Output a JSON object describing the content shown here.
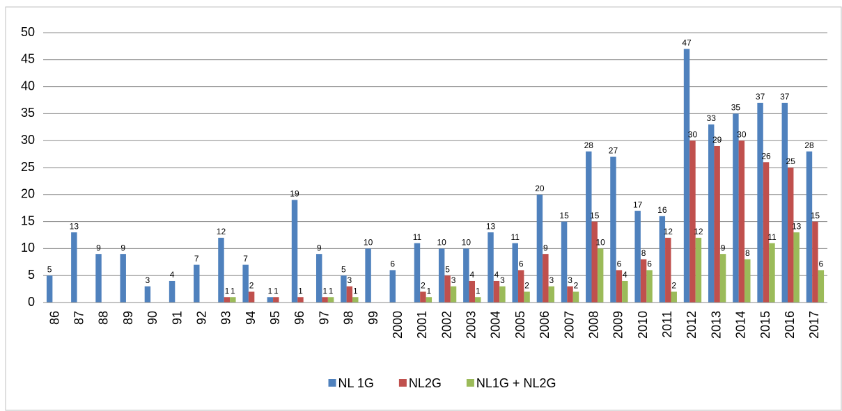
{
  "chart_data": {
    "type": "bar",
    "categories": [
      "86",
      "87",
      "88",
      "89",
      "90",
      "91",
      "92",
      "93",
      "94",
      "95",
      "96",
      "97",
      "98",
      "99",
      "2000",
      "2001",
      "2002",
      "2003",
      "2004",
      "2005",
      "2006",
      "2007",
      "2008",
      "2009",
      "2010",
      "2011",
      "2012",
      "2013",
      "2014",
      "2015",
      "2016",
      "2017"
    ],
    "series": [
      {
        "name": "NL 1G",
        "color": "#4f81bd",
        "values": [
          5,
          13,
          9,
          9,
          3,
          4,
          7,
          12,
          7,
          1,
          19,
          9,
          5,
          10,
          6,
          11,
          10,
          10,
          13,
          11,
          20,
          15,
          28,
          27,
          17,
          16,
          47,
          33,
          35,
          37,
          37,
          28
        ]
      },
      {
        "name": "NL2G",
        "color": "#c0504d",
        "values": [
          null,
          null,
          null,
          null,
          null,
          null,
          null,
          1,
          2,
          1,
          1,
          1,
          3,
          null,
          null,
          2,
          5,
          4,
          4,
          6,
          9,
          3,
          15,
          6,
          8,
          12,
          30,
          29,
          30,
          26,
          25,
          15
        ]
      },
      {
        "name": "NL1G + NL2G",
        "color": "#9bbb59",
        "values": [
          null,
          null,
          null,
          null,
          null,
          null,
          null,
          1,
          null,
          null,
          null,
          1,
          1,
          null,
          null,
          1,
          3,
          1,
          3,
          2,
          3,
          2,
          10,
          4,
          6,
          2,
          12,
          9,
          8,
          11,
          13,
          6
        ]
      }
    ],
    "ylim": [
      0,
      50
    ],
    "yticks": [
      0,
      5,
      10,
      15,
      20,
      25,
      30,
      35,
      40,
      45,
      50
    ],
    "grid": true,
    "legend": "bottom",
    "data_labels": true
  }
}
